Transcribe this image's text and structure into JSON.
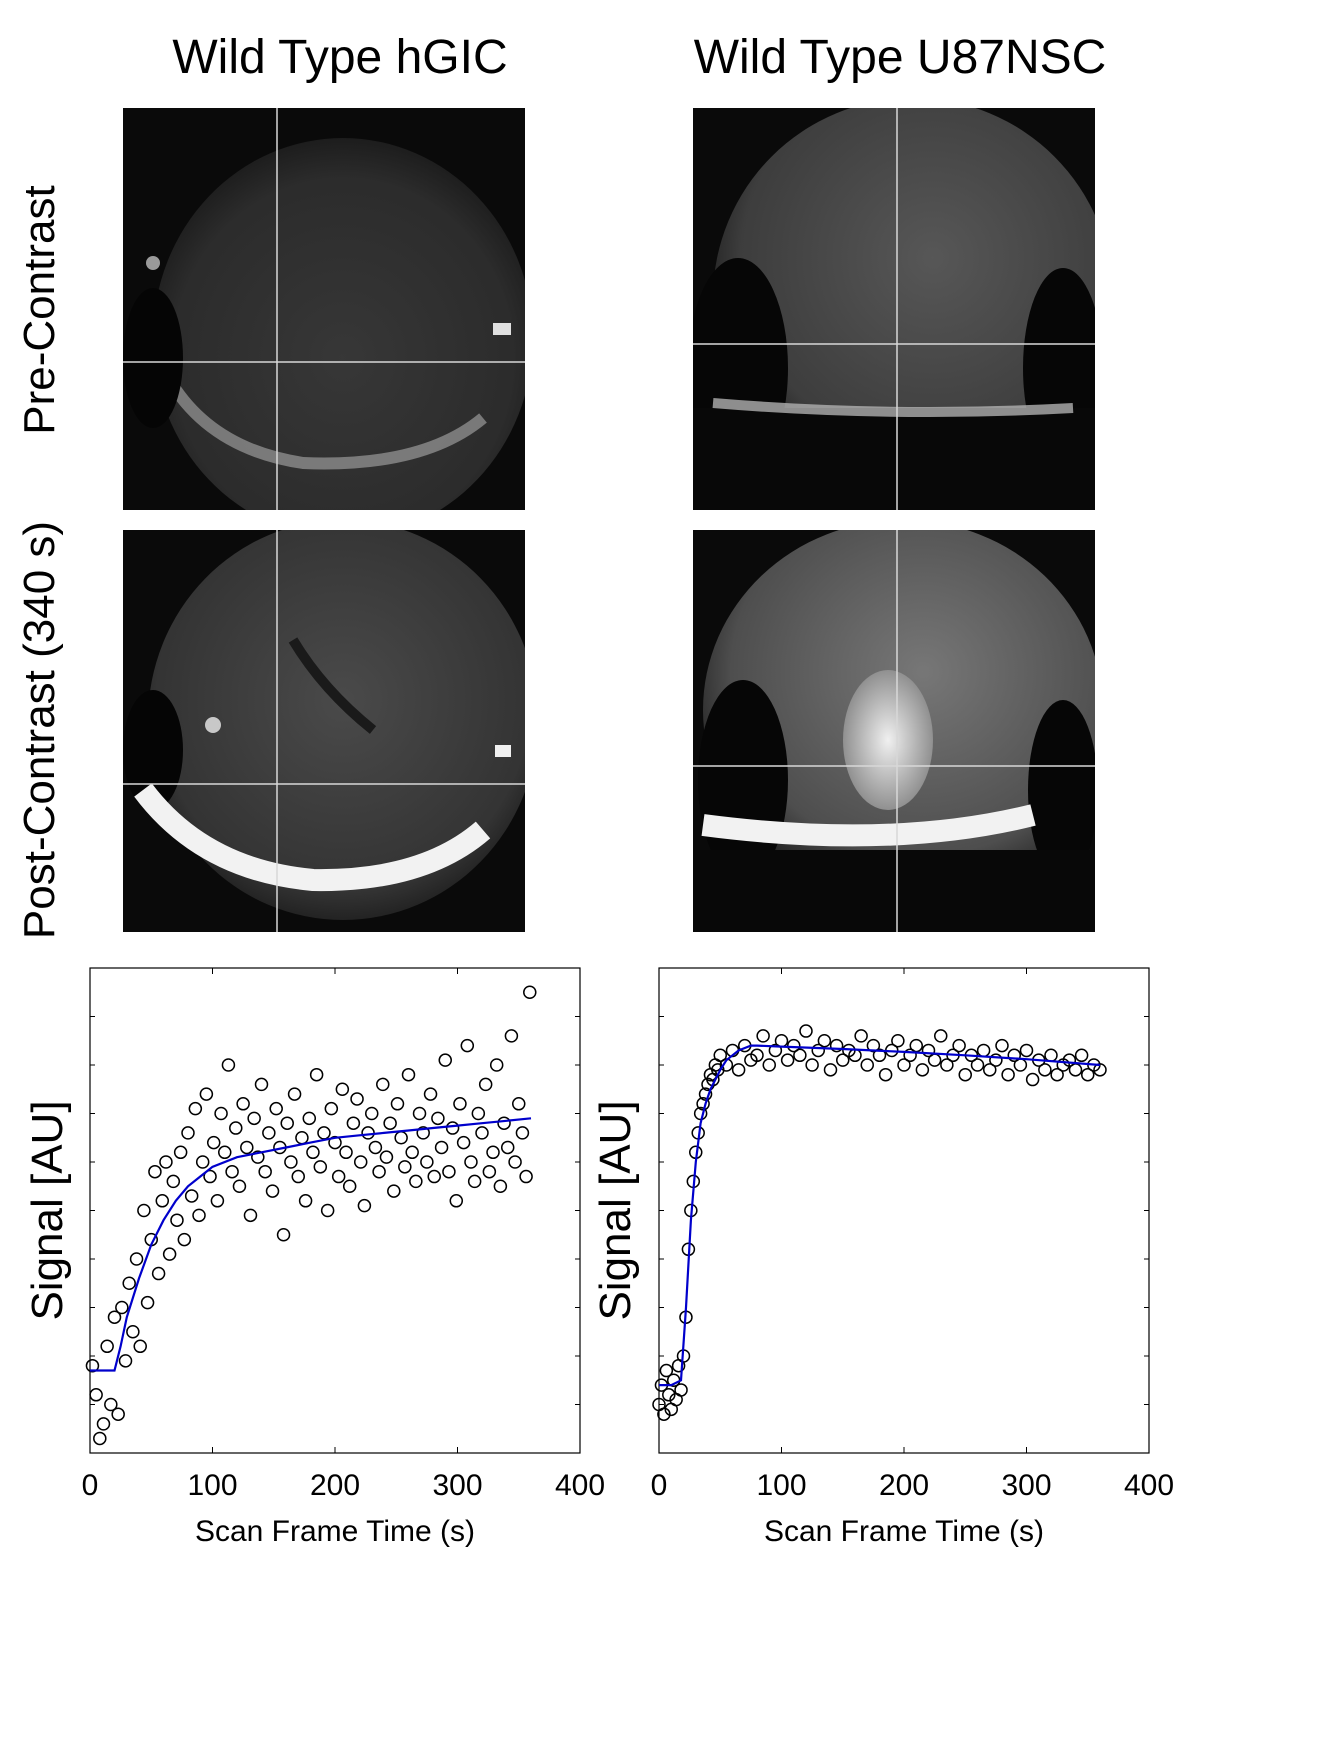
{
  "figure": {
    "columns": [
      {
        "title": "Wild Type hGIC"
      },
      {
        "title": "Wild Type U87NSC"
      }
    ],
    "rows": [
      {
        "label": "Pre-Contrast"
      },
      {
        "label": "Post-Contrast (340 s)"
      }
    ],
    "image_semantics": {
      "modality": "MRI slice with crosshair",
      "palette": {
        "background": "#080808",
        "tissue": "#5a5a5a",
        "enhanced": "#f2f2f2",
        "crosshair": "#d8d8d8"
      }
    }
  },
  "chart_data": [
    {
      "type": "scatter",
      "title": "",
      "xlabel": "Scan Frame Time (s)",
      "ylabel": "Signal [AU]",
      "xlim": [
        0,
        400
      ],
      "xticks": [
        0,
        100,
        200,
        300,
        400
      ],
      "ylim": [
        0,
        1
      ],
      "yticks_unlabeled": true,
      "marker": "open-circle",
      "fit_color": "#0000cc",
      "series": [
        {
          "kind": "points",
          "x": [
            2,
            5,
            8,
            11,
            14,
            17,
            20,
            23,
            26,
            29,
            32,
            35,
            38,
            41,
            44,
            47,
            50,
            53,
            56,
            59,
            62,
            65,
            68,
            71,
            74,
            77,
            80,
            83,
            86,
            89,
            92,
            95,
            98,
            101,
            104,
            107,
            110,
            113,
            116,
            119,
            122,
            125,
            128,
            131,
            134,
            137,
            140,
            143,
            146,
            149,
            152,
            155,
            158,
            161,
            164,
            167,
            170,
            173,
            176,
            179,
            182,
            185,
            188,
            191,
            194,
            197,
            200,
            203,
            206,
            209,
            212,
            215,
            218,
            221,
            224,
            227,
            230,
            233,
            236,
            239,
            242,
            245,
            248,
            251,
            254,
            257,
            260,
            263,
            266,
            269,
            272,
            275,
            278,
            281,
            284,
            287,
            290,
            293,
            296,
            299,
            302,
            305,
            308,
            311,
            314,
            317,
            320,
            323,
            326,
            329,
            332,
            335,
            338,
            341,
            344,
            347,
            350,
            353,
            356,
            359
          ],
          "y": [
            0.18,
            0.12,
            0.03,
            0.06,
            0.22,
            0.1,
            0.28,
            0.08,
            0.3,
            0.19,
            0.35,
            0.25,
            0.4,
            0.22,
            0.5,
            0.31,
            0.44,
            0.58,
            0.37,
            0.52,
            0.6,
            0.41,
            0.56,
            0.48,
            0.62,
            0.44,
            0.66,
            0.53,
            0.71,
            0.49,
            0.6,
            0.74,
            0.57,
            0.64,
            0.52,
            0.7,
            0.62,
            0.8,
            0.58,
            0.67,
            0.55,
            0.72,
            0.63,
            0.49,
            0.69,
            0.61,
            0.76,
            0.58,
            0.66,
            0.54,
            0.71,
            0.63,
            0.45,
            0.68,
            0.6,
            0.74,
            0.57,
            0.65,
            0.52,
            0.69,
            0.62,
            0.78,
            0.59,
            0.66,
            0.5,
            0.71,
            0.64,
            0.57,
            0.75,
            0.62,
            0.55,
            0.68,
            0.73,
            0.6,
            0.51,
            0.66,
            0.7,
            0.63,
            0.58,
            0.76,
            0.61,
            0.68,
            0.54,
            0.72,
            0.65,
            0.59,
            0.78,
            0.62,
            0.56,
            0.7,
            0.66,
            0.6,
            0.74,
            0.57,
            0.69,
            0.63,
            0.81,
            0.58,
            0.67,
            0.52,
            0.72,
            0.64,
            0.84,
            0.6,
            0.56,
            0.7,
            0.66,
            0.76,
            0.58,
            0.62,
            0.8,
            0.55,
            0.68,
            0.63,
            0.86,
            0.6,
            0.72,
            0.66,
            0.57,
            0.95
          ]
        },
        {
          "kind": "fit",
          "x": [
            0,
            10,
            20,
            25,
            30,
            40,
            50,
            60,
            70,
            80,
            90,
            100,
            120,
            140,
            160,
            180,
            200,
            220,
            240,
            260,
            280,
            300,
            320,
            340,
            360
          ],
          "y": [
            0.17,
            0.17,
            0.17,
            0.22,
            0.28,
            0.36,
            0.43,
            0.48,
            0.52,
            0.55,
            0.57,
            0.59,
            0.61,
            0.62,
            0.63,
            0.64,
            0.65,
            0.655,
            0.66,
            0.665,
            0.67,
            0.675,
            0.68,
            0.685,
            0.69
          ]
        }
      ]
    },
    {
      "type": "scatter",
      "title": "",
      "xlabel": "Scan Frame Time (s)",
      "ylabel": "Signal [AU]",
      "xlim": [
        0,
        400
      ],
      "xticks": [
        0,
        100,
        200,
        300,
        400
      ],
      "ylim": [
        0,
        1
      ],
      "yticks_unlabeled": true,
      "marker": "open-circle",
      "fit_color": "#0000cc",
      "series": [
        {
          "kind": "points",
          "x": [
            0,
            2,
            4,
            6,
            8,
            10,
            12,
            14,
            16,
            18,
            20,
            22,
            24,
            26,
            28,
            30,
            32,
            34,
            36,
            38,
            40,
            42,
            44,
            46,
            48,
            50,
            55,
            60,
            65,
            70,
            75,
            80,
            85,
            90,
            95,
            100,
            105,
            110,
            115,
            120,
            125,
            130,
            135,
            140,
            145,
            150,
            155,
            160,
            165,
            170,
            175,
            180,
            185,
            190,
            195,
            200,
            205,
            210,
            215,
            220,
            225,
            230,
            235,
            240,
            245,
            250,
            255,
            260,
            265,
            270,
            275,
            280,
            285,
            290,
            295,
            300,
            305,
            310,
            315,
            320,
            325,
            330,
            335,
            340,
            345,
            350,
            355,
            360
          ],
          "y": [
            0.1,
            0.14,
            0.08,
            0.17,
            0.12,
            0.09,
            0.15,
            0.11,
            0.18,
            0.13,
            0.2,
            0.28,
            0.42,
            0.5,
            0.56,
            0.62,
            0.66,
            0.7,
            0.72,
            0.74,
            0.76,
            0.78,
            0.77,
            0.8,
            0.79,
            0.82,
            0.8,
            0.83,
            0.79,
            0.84,
            0.81,
            0.82,
            0.86,
            0.8,
            0.83,
            0.85,
            0.81,
            0.84,
            0.82,
            0.87,
            0.8,
            0.83,
            0.85,
            0.79,
            0.84,
            0.81,
            0.83,
            0.82,
            0.86,
            0.8,
            0.84,
            0.82,
            0.78,
            0.83,
            0.85,
            0.8,
            0.82,
            0.84,
            0.79,
            0.83,
            0.81,
            0.86,
            0.8,
            0.82,
            0.84,
            0.78,
            0.82,
            0.8,
            0.83,
            0.79,
            0.81,
            0.84,
            0.78,
            0.82,
            0.8,
            0.83,
            0.77,
            0.81,
            0.79,
            0.82,
            0.78,
            0.8,
            0.81,
            0.79,
            0.82,
            0.78,
            0.8,
            0.79
          ]
        },
        {
          "kind": "fit",
          "x": [
            0,
            10,
            18,
            22,
            26,
            30,
            34,
            38,
            42,
            46,
            50,
            55,
            60,
            65,
            70,
            75,
            80,
            100,
            150,
            200,
            250,
            300,
            360
          ],
          "y": [
            0.14,
            0.14,
            0.15,
            0.3,
            0.48,
            0.6,
            0.68,
            0.72,
            0.75,
            0.77,
            0.79,
            0.81,
            0.82,
            0.83,
            0.835,
            0.84,
            0.84,
            0.838,
            0.833,
            0.827,
            0.82,
            0.812,
            0.8
          ]
        }
      ]
    }
  ]
}
